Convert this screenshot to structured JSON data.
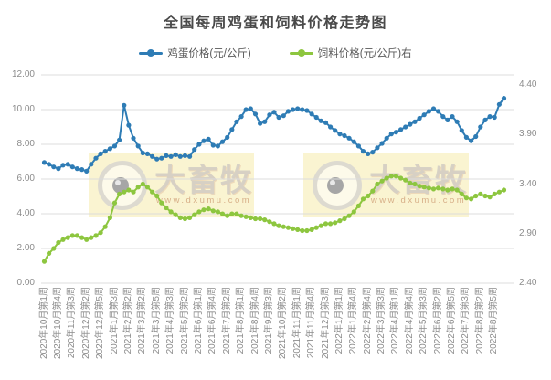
{
  "title": "全国每周鸡蛋和饲料价格走势图",
  "legend": [
    {
      "label": "鸡蛋价格(元/公斤)",
      "color": "#2e7cb5"
    },
    {
      "label": "饲料价格(元/公斤)右",
      "color": "#8dc63f"
    }
  ],
  "watermark": {
    "brand": "大畜牧",
    "url": "www.dxumu.com"
  },
  "colors": {
    "egg_series": "#2e7cb5",
    "feed_series": "#8dc63f",
    "gridline": "#dcdcdc",
    "axis_text": "#8c8c8c",
    "title_text": "#4a4a4a",
    "watermark_bg": "#f9f1c6"
  },
  "chart_data": {
    "type": "line",
    "title": "全国每周鸡蛋和饲料价格走势图",
    "x_unit": "week",
    "x_tick_every": 3,
    "x_tick_labels": [
      "2020年10月第1周",
      "2020年10月第4周",
      "2020年11月第3周",
      "2020年12月第2周",
      "2020年12月第5周",
      "2021年1月第3周",
      "2021年2月第2周",
      "2021年3月第2周",
      "2021年3月第5周",
      "2021年4月第3周",
      "2021年5月第2周",
      "2021年6月第1周",
      "2021年6月第4周",
      "2021年7月第2周",
      "2021年8月第1周",
      "2021年8月第4周",
      "2021年9月第3周",
      "2021年10月第2周",
      "2021年11月第1周",
      "2021年11月第4周",
      "2021年12月第3周",
      "2022年1月第1周",
      "2022年1月第4周",
      "2022年2月第4周",
      "2022年3月第3周",
      "2022年4月第1周",
      "2022年4月第4周",
      "2022年5月第3周",
      "2022年6月第2周",
      "2022年6月第5周",
      "2022年7月第3周",
      "2022年8月第2周",
      "2022年8月第5周"
    ],
    "left_axis": {
      "min": 0,
      "max": 12,
      "ticks": [
        "12.00",
        "10.00",
        "8.00",
        "6.00",
        "4.00",
        "2.00",
        "0.00"
      ]
    },
    "right_axis": {
      "min": 2.4,
      "max": 4.4,
      "ticks": [
        "4.40",
        "3.90",
        "3.40",
        "2.90",
        "2.40"
      ]
    },
    "grid": true,
    "legend_position": "top",
    "series": [
      {
        "name": "鸡蛋价格(元/公斤)",
        "axis": "left",
        "color": "#2e7cb5",
        "values": [
          6.95,
          6.85,
          6.7,
          6.6,
          6.8,
          6.85,
          6.7,
          6.6,
          6.55,
          6.45,
          6.85,
          7.2,
          7.45,
          7.6,
          7.75,
          7.9,
          8.25,
          10.25,
          9.1,
          8.35,
          7.9,
          7.5,
          7.45,
          7.3,
          7.15,
          7.2,
          7.35,
          7.3,
          7.4,
          7.3,
          7.35,
          7.3,
          7.7,
          8.0,
          8.2,
          8.3,
          7.95,
          7.9,
          8.15,
          8.4,
          8.85,
          9.3,
          9.6,
          10.0,
          10.05,
          9.75,
          9.2,
          9.3,
          9.7,
          9.85,
          9.55,
          9.65,
          9.9,
          10.0,
          10.05,
          10.0,
          9.95,
          9.75,
          9.55,
          9.35,
          9.25,
          9.0,
          8.8,
          8.6,
          8.5,
          8.35,
          8.15,
          7.9,
          7.6,
          7.45,
          7.55,
          7.8,
          8.05,
          8.35,
          8.6,
          8.7,
          8.85,
          9.0,
          9.15,
          9.3,
          9.5,
          9.7,
          9.9,
          10.05,
          9.9,
          9.6,
          9.4,
          9.6,
          9.3,
          8.8,
          8.4,
          8.2,
          8.45,
          9.0,
          9.4,
          9.6,
          9.55,
          10.3,
          10.65
        ]
      },
      {
        "name": "饲料价格(元/公斤)右",
        "axis": "right",
        "color": "#8dc63f",
        "values": [
          2.62,
          2.7,
          2.75,
          2.81,
          2.84,
          2.86,
          2.88,
          2.88,
          2.86,
          2.84,
          2.86,
          2.88,
          2.91,
          2.97,
          3.06,
          3.21,
          3.3,
          3.32,
          3.34,
          3.32,
          3.37,
          3.4,
          3.37,
          3.32,
          3.28,
          3.21,
          3.16,
          3.12,
          3.09,
          3.06,
          3.05,
          3.06,
          3.09,
          3.12,
          3.14,
          3.15,
          3.13,
          3.12,
          3.1,
          3.08,
          3.1,
          3.1,
          3.08,
          3.07,
          3.06,
          3.05,
          3.05,
          3.04,
          3.02,
          3.0,
          2.98,
          2.97,
          2.96,
          2.95,
          2.94,
          2.93,
          2.93,
          2.94,
          2.96,
          2.98,
          3.0,
          3.0,
          3.01,
          3.03,
          3.05,
          3.08,
          3.12,
          3.18,
          3.25,
          3.28,
          3.33,
          3.4,
          3.43,
          3.46,
          3.48,
          3.48,
          3.46,
          3.44,
          3.41,
          3.4,
          3.38,
          3.37,
          3.36,
          3.35,
          3.36,
          3.35,
          3.34,
          3.35,
          3.34,
          3.3,
          3.26,
          3.25,
          3.28,
          3.3,
          3.28,
          3.27,
          3.3,
          3.32,
          3.34
        ]
      }
    ]
  }
}
